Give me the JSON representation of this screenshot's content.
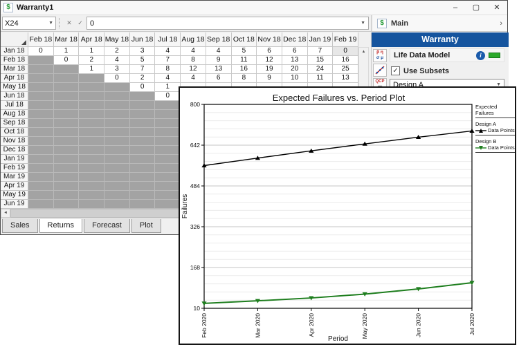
{
  "window": {
    "title": "Warranty1",
    "controls": {
      "minimize": "–",
      "maximize": "▢",
      "close": "✕"
    }
  },
  "icons": {
    "dollar": "$",
    "dropdown_arrow": "▼",
    "chevron_right": "›",
    "scroll_up": "▲",
    "scroll_left": "◄",
    "check": "✓"
  },
  "formula_bar": {
    "cell_ref": "X24",
    "cancel": "✕",
    "confirm": "✓",
    "value": "0"
  },
  "grid": {
    "columns": [
      "Feb 18",
      "Mar 18",
      "Apr 18",
      "May 18",
      "Jun 18",
      "Jul 18",
      "Aug 18",
      "Sep 18",
      "Oct 18",
      "Nov 18",
      "Dec 18",
      "Jan 19",
      "Feb 19"
    ],
    "rows": [
      {
        "label": "Jan 18",
        "gray": 0,
        "values": [
          "0",
          "1",
          "1",
          "2",
          "3",
          "4",
          "4",
          "4",
          "5",
          "6",
          "6",
          "7",
          "0"
        ]
      },
      {
        "label": "Feb 18",
        "gray": 1,
        "values": [
          "0",
          "2",
          "4",
          "5",
          "7",
          "8",
          "9",
          "11",
          "12",
          "13",
          "15",
          "16"
        ]
      },
      {
        "label": "Mar 18",
        "gray": 2,
        "values": [
          "1",
          "3",
          "7",
          "8",
          "12",
          "13",
          "16",
          "19",
          "20",
          "24",
          "25"
        ]
      },
      {
        "label": "Apr 18",
        "gray": 3,
        "values": [
          "0",
          "2",
          "4",
          "4",
          "6",
          "8",
          "9",
          "10",
          "11",
          "13"
        ]
      },
      {
        "label": "May 18",
        "gray": 4,
        "values": [
          "0",
          "1"
        ]
      },
      {
        "label": "Jun 18",
        "gray": 5,
        "values": [
          "0"
        ]
      },
      {
        "label": "Jul 18",
        "gray": 6,
        "values": []
      },
      {
        "label": "Aug 18",
        "gray": 7,
        "values": []
      },
      {
        "label": "Sep 18",
        "gray": 8,
        "values": []
      },
      {
        "label": "Oct 18",
        "gray": 9,
        "values": []
      },
      {
        "label": "Nov 18",
        "gray": 10,
        "values": []
      },
      {
        "label": "Dec 18",
        "gray": 11,
        "values": []
      },
      {
        "label": "Jan 19",
        "gray": 12,
        "values": []
      },
      {
        "label": "Feb 19",
        "gray": 13,
        "values": []
      },
      {
        "label": "Mar 19",
        "gray": 13,
        "values": []
      },
      {
        "label": "Apr 19",
        "gray": 13,
        "values": []
      },
      {
        "label": "May 19",
        "gray": 13,
        "values": []
      },
      {
        "label": "Jun 19",
        "gray": 13,
        "values": []
      }
    ],
    "selected_cell": {
      "row_index": 0,
      "col_index": 12,
      "value": "0"
    },
    "empty_cell_color": "#a3a3a3"
  },
  "tabs": [
    {
      "label": "Sales",
      "active": false
    },
    {
      "label": "Returns",
      "active": true
    },
    {
      "label": "Forecast",
      "active": false
    },
    {
      "label": "Plot",
      "active": false
    }
  ],
  "panel": {
    "header": "Main",
    "banner": "Warranty",
    "banner_color": "#15549e",
    "section_title": "Life Data Model",
    "status_color": "#2ba82b",
    "checkbox_label": "Use Subsets",
    "checkbox_checked": true,
    "dropdown_value": "Design A",
    "icon_glyphs": {
      "distribution_top": "β η",
      "distribution_bottom": "σ μ",
      "qcp": "QCP",
      "calculator": "▦"
    }
  },
  "chart_data": {
    "type": "line",
    "title": "Expected Failures vs. Period Plot",
    "xlabel": "Period",
    "ylabel": "Failures",
    "x_categories": [
      "Feb 2020",
      "Mar 2020",
      "Apr 2020",
      "May 2020",
      "Jun 2020",
      "Jul 2020"
    ],
    "y_ticks": [
      10,
      168,
      326,
      484,
      642,
      800
    ],
    "ylim": [
      10,
      800
    ],
    "grid": true,
    "minor_gridlines_per_interval": 4,
    "legend_title": "Expected Failures",
    "legend_position": "top-right",
    "legend_entry_label": "Data Points",
    "series": [
      {
        "name": "Design A",
        "color": "#000000",
        "marker": "triangle-up",
        "values": [
          563,
          592,
          620,
          647,
          673,
          697
        ]
      },
      {
        "name": "Design B",
        "color": "#1e7e1e",
        "marker": "triangle-down",
        "values": [
          29,
          39,
          50,
          65,
          85,
          109
        ]
      }
    ]
  }
}
